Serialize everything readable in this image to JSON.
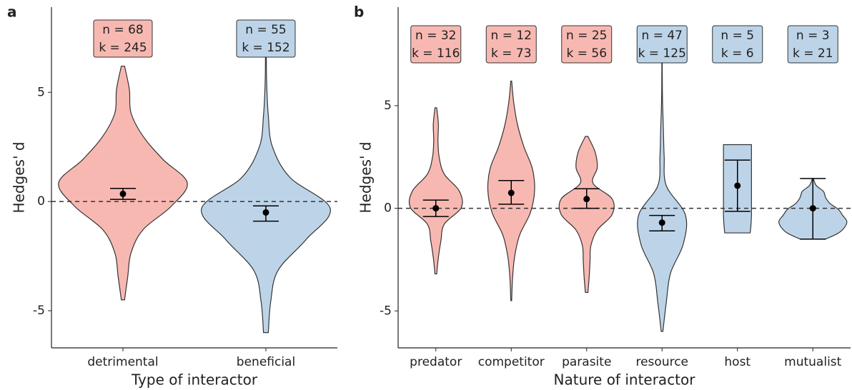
{
  "chart_data": [
    {
      "type": "violin",
      "panel_label": "a",
      "xlabel": "Type of interactor",
      "ylabel": "Hedges' d",
      "categories": [
        "detrimental",
        "beneficial"
      ],
      "ylim": [
        -6.7,
        8.9
      ],
      "yticks": [
        -5,
        0,
        5
      ],
      "reference_line": 0,
      "violins": [
        {
          "color": "#f8b8b2",
          "min": -4.5,
          "max": 6.2,
          "mean": 0.35,
          "ci": [
            0.1,
            0.6
          ],
          "density": [
            0.02,
            0.06,
            0.1,
            0.25,
            0.6,
            0.8,
            0.5,
            0.25,
            0.1,
            0.08,
            0.02
          ],
          "labels": [
            "n = 68",
            "k = 245"
          ]
        },
        {
          "color": "#bdd4e8",
          "min": -6.0,
          "max": 8.2,
          "mean": -0.5,
          "ci": [
            -0.9,
            -0.2
          ],
          "density": [
            0.03,
            0.06,
            0.15,
            0.5,
            0.8,
            0.3,
            0.08,
            0.03,
            0.01,
            0.005,
            0.005
          ],
          "labels": [
            "n = 55",
            "k = 152"
          ]
        }
      ]
    },
    {
      "type": "violin",
      "panel_label": "b",
      "xlabel": "Nature of interactor",
      "ylabel": "Hedges' d",
      "categories": [
        "predator",
        "competitor",
        "parasite",
        "resource",
        "host",
        "mutualist"
      ],
      "ylim": [
        -6.8,
        9.8
      ],
      "yticks": [
        -5,
        0,
        5
      ],
      "reference_line": 0,
      "violins": [
        {
          "color": "#f8b8b2",
          "min": -3.2,
          "max": 4.9,
          "mean": 0,
          "ci": [
            -0.4,
            0.4
          ],
          "density": [
            0.02,
            0.06,
            0.12,
            0.2,
            0.6,
            0.55,
            0.2,
            0.08,
            0.05,
            0.06,
            0.02
          ],
          "labels": [
            "n = 32",
            "k = 116"
          ]
        },
        {
          "color": "#f8b8b2",
          "min": -4.5,
          "max": 6.2,
          "mean": 0.75,
          "ci": [
            0.2,
            1.35
          ],
          "density": [
            0.01,
            0.03,
            0.08,
            0.2,
            0.45,
            0.55,
            0.5,
            0.3,
            0.15,
            0.06,
            0.01
          ],
          "labels": [
            "n = 12",
            "k = 73"
          ]
        },
        {
          "color": "#f8b8b2",
          "min": -4.1,
          "max": 3.5,
          "mean": 0.45,
          "ci": [
            0,
            0.95
          ],
          "density": [
            0.03,
            0.06,
            0.08,
            0.1,
            0.25,
            0.6,
            0.6,
            0.15,
            0.25,
            0.2,
            0.03
          ],
          "labels": [
            "n = 25",
            "k = 56"
          ]
        },
        {
          "color": "#bdd4e8",
          "min": -6.0,
          "max": 8.2,
          "mean": -0.7,
          "ci": [
            -1.1,
            -0.35
          ],
          "density": [
            0.02,
            0.1,
            0.2,
            0.5,
            0.55,
            0.1,
            0.05,
            0.03,
            0.01,
            0.005,
            0.005
          ],
          "labels": [
            "n = 47",
            "k = 125"
          ]
        },
        {
          "color": "#bdd4e8",
          "min": -1.2,
          "max": 3.1,
          "mean": 1.1,
          "ci": [
            -0.15,
            2.35
          ],
          "density": [
            0.3,
            0.32,
            0.33,
            0.33,
            0.33,
            0.33,
            0.33,
            0.33,
            0.33,
            0.33,
            0.33
          ],
          "labels": [
            "n = 5",
            "k = 6"
          ]
        },
        {
          "color": "#bdd4e8",
          "min": -1.5,
          "max": 1.4,
          "mean": 0,
          "ci": [
            -1.5,
            1.45
          ],
          "density": [
            0.3,
            0.6,
            0.75,
            0.8,
            0.7,
            0.6,
            0.4,
            0.3,
            0.25,
            0.08,
            0.02
          ],
          "labels": [
            "n = 3",
            "k = 21"
          ]
        }
      ]
    }
  ]
}
